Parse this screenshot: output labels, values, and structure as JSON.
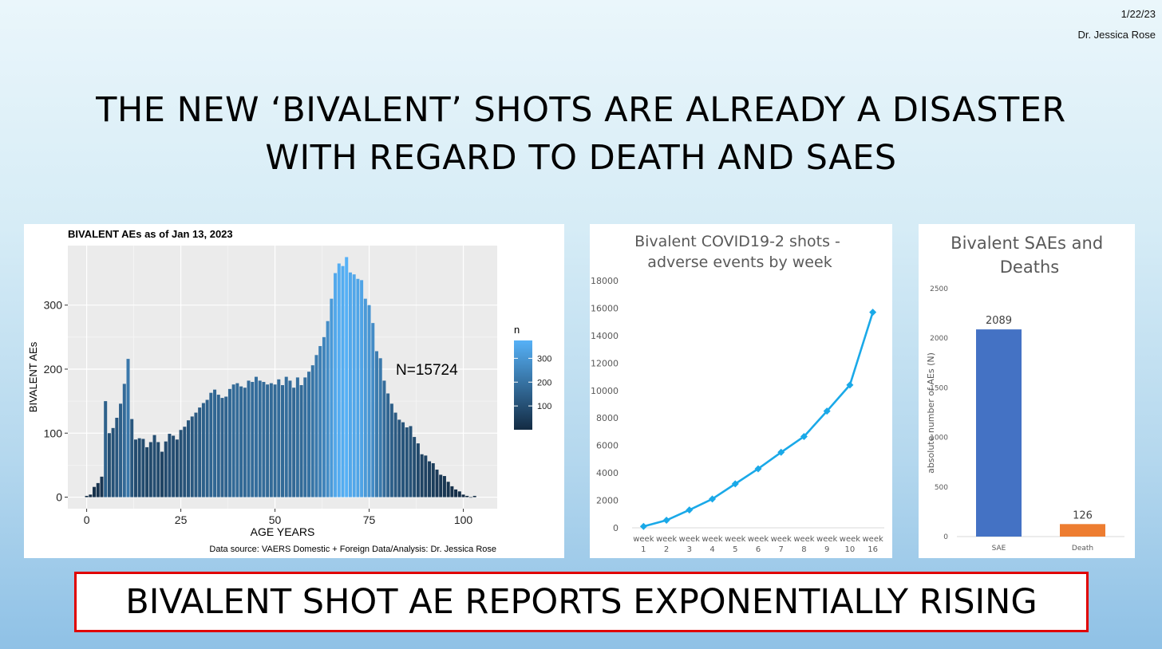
{
  "header": {
    "date": "1/22/23",
    "author": "Dr. Jessica Rose",
    "title_line1": "THE NEW ‘BIVALENT’ SHOTS ARE ALREADY A DISASTER",
    "title_line2": "WITH REGARD TO DEATH AND SAES"
  },
  "banner": {
    "text": "BIVALENT SHOT AE REPORTS EXPONENTIALLY RISING"
  },
  "colors": {
    "hist_low": "#132b43",
    "hist_high": "#56b1f7",
    "panel_bg": "#ebebeb",
    "grid": "#ffffff",
    "line_color": "#1aa9e8",
    "sae_color": "#4472c4",
    "death_color": "#ed7d31",
    "banner_border": "#e00000"
  },
  "chart_data": [
    {
      "type": "bar",
      "title": "BIVALENT AEs as of Jan 13, 2023",
      "xlabel": "AGE YEARS",
      "ylabel": "BIVALENT AEs",
      "annotation": "N=15724",
      "caption": "Data source: VAERS Domestic + Foreign Data/Analysis: Dr. Jessica Rose",
      "legend_title": "n",
      "legend_ticks": [
        "100",
        "200",
        "300"
      ],
      "legend_values": [
        100,
        200,
        300
      ],
      "xticks": [
        "0",
        "25",
        "50",
        "75",
        "100"
      ],
      "xtick_values": [
        0,
        25,
        50,
        75,
        100
      ],
      "yticks": [
        "0",
        "100",
        "200",
        "300"
      ],
      "ytick_values": [
        0,
        100,
        200,
        300
      ],
      "xlim": [
        -5,
        109
      ],
      "ylim": [
        -18,
        393
      ],
      "grid": true,
      "x": [
        0,
        1,
        2,
        3,
        4,
        5,
        6,
        7,
        8,
        9,
        10,
        11,
        12,
        13,
        14,
        15,
        16,
        17,
        18,
        19,
        20,
        21,
        22,
        23,
        24,
        25,
        26,
        27,
        28,
        29,
        30,
        31,
        32,
        33,
        34,
        35,
        36,
        37,
        38,
        39,
        40,
        41,
        42,
        43,
        44,
        45,
        46,
        47,
        48,
        49,
        50,
        51,
        52,
        53,
        54,
        55,
        56,
        57,
        58,
        59,
        60,
        61,
        62,
        63,
        64,
        65,
        66,
        67,
        68,
        69,
        70,
        71,
        72,
        73,
        74,
        75,
        76,
        77,
        78,
        79,
        80,
        81,
        82,
        83,
        84,
        85,
        86,
        87,
        88,
        89,
        90,
        91,
        92,
        93,
        94,
        95,
        96,
        97,
        98,
        99,
        100,
        101,
        102,
        103
      ],
      "values": [
        2,
        4,
        16,
        22,
        32,
        150,
        100,
        108,
        124,
        146,
        177,
        216,
        122,
        90,
        92,
        91,
        78,
        86,
        97,
        86,
        71,
        87,
        99,
        96,
        90,
        105,
        110,
        120,
        126,
        132,
        140,
        147,
        152,
        163,
        168,
        160,
        155,
        157,
        169,
        176,
        178,
        173,
        171,
        182,
        180,
        188,
        182,
        180,
        176,
        178,
        176,
        184,
        175,
        188,
        182,
        171,
        187,
        175,
        187,
        196,
        206,
        222,
        236,
        250,
        275,
        310,
        350,
        365,
        361,
        375,
        351,
        348,
        341,
        339,
        310,
        300,
        272,
        228,
        217,
        182,
        162,
        146,
        132,
        121,
        117,
        109,
        111,
        94,
        84,
        67,
        65,
        56,
        53,
        43,
        35,
        33,
        24,
        17,
        12,
        9,
        4,
        2,
        0,
        2
      ]
    },
    {
      "type": "line",
      "title": "Bivalent COVID19-2 shots - adverse events by week",
      "categories": [
        [
          "week",
          "1"
        ],
        [
          "week",
          "2"
        ],
        [
          "week",
          "3"
        ],
        [
          "week",
          "4"
        ],
        [
          "week",
          "5"
        ],
        [
          "week",
          "6"
        ],
        [
          "week",
          "7"
        ],
        [
          "week",
          "8"
        ],
        [
          "week",
          "9"
        ],
        [
          "week",
          "10"
        ],
        [
          "week",
          "16"
        ]
      ],
      "values": [
        100,
        550,
        1300,
        2100,
        3200,
        4300,
        5500,
        6650,
        8500,
        10400,
        15700
      ],
      "yticks": [
        "0",
        "2000",
        "4000",
        "6000",
        "8000",
        "10000",
        "12000",
        "14000",
        "16000",
        "18000"
      ],
      "ytick_values": [
        0,
        2000,
        4000,
        6000,
        8000,
        10000,
        12000,
        14000,
        16000,
        18000
      ],
      "ylim": [
        0,
        18000
      ]
    },
    {
      "type": "bar",
      "title": "Bivalent SAEs and Deaths",
      "categories": [
        "SAE",
        "Death"
      ],
      "values": [
        2089,
        126
      ],
      "data_labels": [
        "2089",
        "126"
      ],
      "ylabel": "absolute number of AEs (N)",
      "yticks": [
        "0",
        "500",
        "1000",
        "1500",
        "2000",
        "2500"
      ],
      "ytick_values": [
        0,
        500,
        1000,
        1500,
        2000,
        2500
      ],
      "ylim": [
        0,
        2500
      ]
    }
  ]
}
